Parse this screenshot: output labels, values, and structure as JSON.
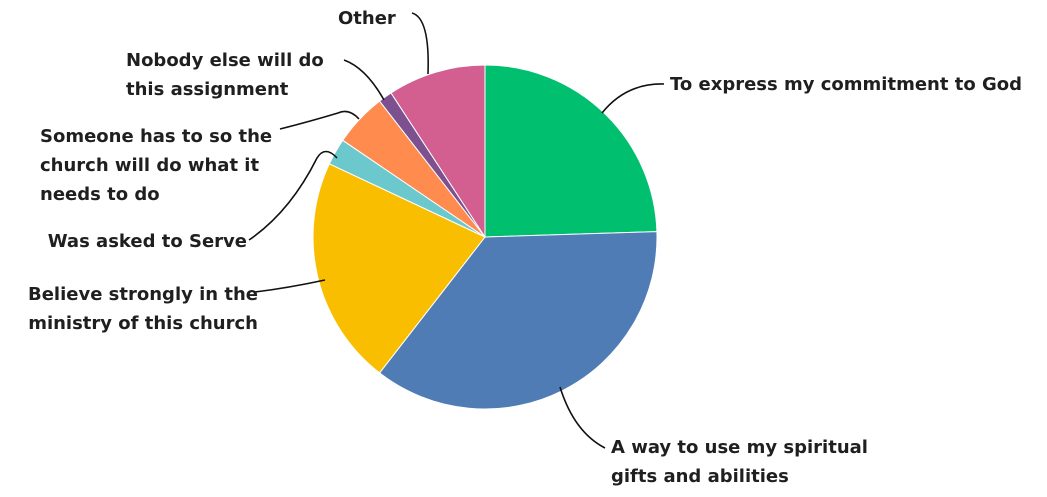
{
  "chart_data": {
    "type": "pie",
    "start_angle_deg": 0,
    "direction": "clockwise",
    "slices": [
      {
        "label": "To express my commitment to God",
        "value": 24.5,
        "color": "#00BF6F"
      },
      {
        "label": "A way to use my spiritual gifts and abilities",
        "value": 36.0,
        "color": "#507CB6"
      },
      {
        "label": "Believe strongly in the ministry of this church",
        "value": 21.5,
        "color": "#F9BE00"
      },
      {
        "label": "Was asked to Serve",
        "value": 2.5,
        "color": "#6BC8CD"
      },
      {
        "label": "Someone has to so the church will do what it needs to do",
        "value": 5.0,
        "color": "#FF8B4F"
      },
      {
        "label": "Nobody else will do this assignment",
        "value": 1.3,
        "color": "#7D5190"
      },
      {
        "label": "Other",
        "value": 9.2,
        "color": "#D25F90"
      }
    ]
  }
}
